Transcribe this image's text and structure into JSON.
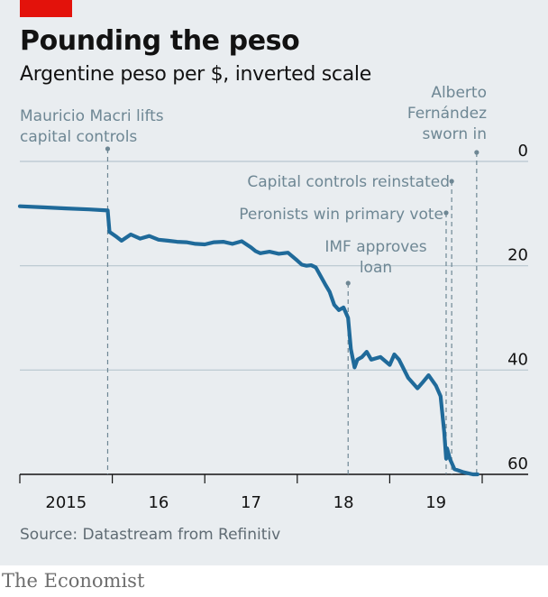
{
  "header": {
    "title": "Pounding the peso",
    "subtitle": "Argentine peso per $, inverted scale"
  },
  "source": "Source: Datastream from Refinitiv",
  "brand": "The Economist",
  "colors": {
    "line": "#1f6a9a",
    "annotation": "#6e8794",
    "accent": "#e3120b",
    "background": "#e9edf0"
  },
  "chart_data": {
    "type": "line",
    "title": "Pounding the peso",
    "subtitle": "Argentine peso per $, inverted scale",
    "ylabel": "Argentine peso per $",
    "y_inverted": true,
    "ylim": [
      0,
      60
    ],
    "y_ticks": [
      0,
      20,
      40,
      60
    ],
    "y_tick_labels": [
      "0",
      "20",
      "40",
      "60"
    ],
    "x_domain": [
      2015.0,
      2020.0
    ],
    "x_ticks": [
      2015,
      2016,
      2017,
      2018,
      2019
    ],
    "x_tick_labels": [
      "2015",
      "16",
      "17",
      "18",
      "19"
    ],
    "series": [
      {
        "name": "Argentine peso per $",
        "x": [
          2015.0,
          2015.25,
          2015.5,
          2015.75,
          2015.95,
          2015.97,
          2016.05,
          2016.1,
          2016.2,
          2016.3,
          2016.4,
          2016.5,
          2016.6,
          2016.7,
          2016.8,
          2016.9,
          2017.0,
          2017.1,
          2017.2,
          2017.3,
          2017.4,
          2017.5,
          2017.55,
          2017.6,
          2017.7,
          2017.8,
          2017.9,
          2018.0,
          2018.05,
          2018.1,
          2018.15,
          2018.2,
          2018.3,
          2018.35,
          2018.4,
          2018.45,
          2018.5,
          2018.55,
          2018.58,
          2018.62,
          2018.65,
          2018.7,
          2018.75,
          2018.8,
          2018.9,
          2019.0,
          2019.05,
          2019.1,
          2019.2,
          2019.3,
          2019.35,
          2019.42,
          2019.5,
          2019.55,
          2019.59,
          2019.61,
          2019.62,
          2019.65,
          2019.7,
          2019.8,
          2019.9,
          2019.95
        ],
        "values": [
          8.6,
          8.8,
          9.0,
          9.2,
          9.4,
          13.5,
          14.5,
          15.2,
          14.0,
          14.8,
          14.3,
          15.0,
          15.2,
          15.4,
          15.5,
          15.8,
          15.9,
          15.5,
          15.4,
          15.8,
          15.3,
          16.5,
          17.2,
          17.6,
          17.3,
          17.7,
          17.5,
          19.0,
          19.8,
          20.0,
          19.9,
          20.3,
          23.5,
          25.0,
          27.5,
          28.5,
          28.0,
          30.0,
          36.0,
          39.5,
          38.0,
          37.5,
          36.5,
          38.0,
          37.5,
          39.0,
          37.0,
          38.0,
          41.5,
          43.5,
          42.5,
          41.0,
          43.0,
          45.0,
          52.0,
          57.0,
          55.0,
          57.0,
          59.0,
          59.6,
          60.0,
          60.0
        ]
      }
    ],
    "annotations": [
      {
        "lines": [
          "Mauricio Macri lifts",
          "capital controls"
        ],
        "x": 2015.95
      },
      {
        "lines": [
          "IMF approves",
          "loan"
        ],
        "x": 2018.55
      },
      {
        "lines": [
          "Peronists win primary vote"
        ],
        "x": 2019.61
      },
      {
        "lines": [
          "Capital controls reinstated"
        ],
        "x": 2019.67
      },
      {
        "lines": [
          "Alberto",
          "Fernández",
          "sworn in"
        ],
        "x": 2019.94
      }
    ]
  }
}
